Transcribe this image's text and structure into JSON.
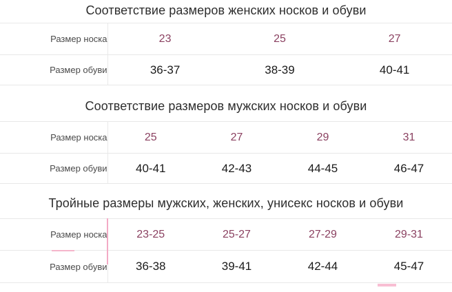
{
  "colors": {
    "sock_size_text": "#8a4060",
    "shoe_size_text": "#1a1a1a",
    "label_text": "#4a4a4a",
    "title_text": "#2d2d2d",
    "grid_line": "#e8e8e8",
    "pink_accent": "#f3aac5"
  },
  "tables": [
    {
      "title": "Соответствие размеров женских носков и обуви",
      "rows": [
        {
          "label": "Размер носка",
          "values": [
            "23",
            "25",
            "27"
          ]
        },
        {
          "label": "Размер обуви",
          "values": [
            "36-37",
            "38-39",
            "40-41"
          ]
        }
      ]
    },
    {
      "title": "Соответствие размеров мужских носков и обуви",
      "rows": [
        {
          "label": "Размер носка",
          "values": [
            "25",
            "27",
            "29",
            "31"
          ]
        },
        {
          "label": "Размер обуви",
          "values": [
            "40-41",
            "42-43",
            "44-45",
            "46-47"
          ]
        }
      ]
    },
    {
      "title": "Тройные размеры мужских, женских, унисекс носков и обуви",
      "rows": [
        {
          "label": "Размер носка",
          "values": [
            "23-25",
            "25-27",
            "27-29",
            "29-31"
          ]
        },
        {
          "label": "Размер обуви",
          "values": [
            "36-38",
            "39-41",
            "42-44",
            "45-47"
          ]
        }
      ]
    }
  ]
}
